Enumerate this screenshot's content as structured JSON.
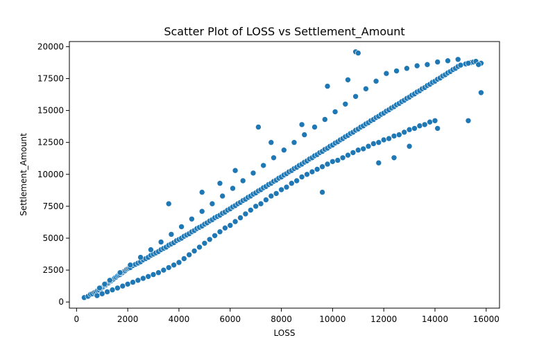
{
  "chart_data": {
    "type": "scatter",
    "title": "Scatter Plot of LOSS vs Settlement_Amount",
    "xlabel": "LOSS",
    "ylabel": "Settlement_Amount",
    "xlim": [
      -280,
      16520
    ],
    "ylim": [
      -480,
      20400
    ],
    "xticks": [
      0,
      2000,
      4000,
      6000,
      8000,
      10000,
      12000,
      14000,
      16000
    ],
    "yticks": [
      0,
      2500,
      5000,
      7500,
      10000,
      12500,
      15000,
      17500,
      20000
    ],
    "grid": false,
    "legend": "none",
    "marker_color": "#1f77b4",
    "marker_edge": "#ffffff",
    "series": [
      {
        "x": [
          300,
          450,
          550,
          620,
          700,
          760,
          820,
          880,
          950,
          1000,
          1050,
          1100,
          1150,
          1200,
          1250,
          1300,
          1350,
          1400,
          1450,
          1500,
          1550,
          1600,
          1650,
          1700,
          1750,
          1800,
          1850,
          1900,
          1950,
          2000,
          2050,
          2100,
          2200,
          2300,
          2400,
          2500,
          2600,
          2700,
          2800,
          2900,
          3000,
          3100,
          3200,
          3300,
          3400,
          3500,
          3600,
          3700,
          3800,
          3900,
          4000,
          4100,
          4200,
          4300,
          4400,
          4500,
          4600,
          4700,
          4800,
          4900,
          5000,
          5100,
          5200,
          5300,
          5400,
          5500,
          5600,
          5700,
          5800,
          5900,
          6000,
          6100,
          6200,
          6300,
          6400,
          6500,
          6600,
          6700,
          6800,
          6900,
          7000,
          7100,
          7200,
          7300,
          7400,
          7500,
          7600,
          7700,
          7800,
          7900,
          8000,
          8100,
          8200,
          8300,
          8400,
          8500,
          8600,
          8700,
          8800,
          8900,
          9000,
          9100,
          9200,
          9300,
          9400,
          9500,
          9600,
          9700,
          9800,
          9900,
          10000,
          10100,
          10200,
          10300,
          10400,
          10500,
          10600,
          10700,
          10800,
          10900,
          11000,
          11100,
          11200,
          11300,
          11400,
          11500,
          11600,
          11700,
          11800,
          11900,
          12000,
          12100,
          12200,
          12300,
          12400,
          12500,
          12600,
          12700,
          12800,
          12900,
          13000,
          13100,
          13200,
          13300,
          13400,
          13500,
          13600,
          13700,
          13800,
          13900,
          14000,
          14100,
          14200,
          14300,
          14400,
          14500,
          14600,
          14700,
          14800,
          14900,
          15000,
          15200,
          15400,
          15500,
          15600,
          15800,
          800,
          1000,
          1200,
          1400,
          1600,
          1800,
          2000,
          2200,
          2400,
          2600,
          2800,
          3000,
          3200,
          3400,
          3600,
          3800,
          4000,
          4200,
          4400,
          4600,
          4800,
          5000,
          5200,
          5400,
          5600,
          5800,
          6000,
          6200,
          6400,
          6600,
          6800,
          7000,
          7200,
          7400,
          7600,
          7800,
          8000,
          8200,
          8400,
          8600,
          8800,
          9000,
          9200,
          9400,
          9600,
          9800,
          10000,
          10200,
          10400,
          10600,
          10800,
          11000,
          11200,
          11400,
          11600,
          11800,
          12000,
          12200,
          12400,
          12600,
          12800,
          13000,
          13200,
          13400,
          13600,
          13800,
          14000,
          900,
          1100,
          1300,
          1700,
          2100,
          2500,
          2900,
          3300,
          3700,
          4100,
          4500,
          4900,
          5300,
          5700,
          6100,
          6500,
          6900,
          7300,
          7700,
          8100,
          8500,
          8900,
          9300,
          9700,
          10100,
          10500,
          10900,
          11300,
          11700,
          12100,
          12500,
          12900,
          13300,
          13700,
          14100,
          14500,
          14900,
          15300,
          15700,
          10900,
          11000,
          10600,
          9600,
          11800,
          12400,
          13000,
          14100,
          15300,
          15800,
          7100,
          8800,
          9800,
          4900,
          5600,
          3600,
          6200,
          7600
        ],
        "y": [
          350,
          450,
          600,
          650,
          750,
          800,
          900,
          950,
          1050,
          1150,
          1200,
          1300,
          1350,
          1450,
          1500,
          1600,
          1650,
          1750,
          1800,
          1900,
          1950,
          2050,
          2100,
          2150,
          2250,
          2300,
          2400,
          2450,
          2550,
          2600,
          2650,
          2700,
          2850,
          2950,
          3050,
          3150,
          3300,
          3400,
          3500,
          3650,
          3750,
          3850,
          3950,
          4100,
          4200,
          4300,
          4450,
          4550,
          4650,
          4800,
          4900,
          5000,
          5150,
          5250,
          5350,
          5500,
          5600,
          5750,
          5850,
          5950,
          6100,
          6200,
          6350,
          6450,
          6600,
          6700,
          6800,
          6950,
          7050,
          7200,
          7300,
          7450,
          7550,
          7700,
          7800,
          7950,
          8050,
          8200,
          8300,
          8450,
          8550,
          8700,
          8800,
          8950,
          9050,
          9200,
          9300,
          9450,
          9550,
          9700,
          9800,
          9950,
          10050,
          10200,
          10300,
          10450,
          10550,
          10700,
          10800,
          10950,
          11050,
          11200,
          11300,
          11450,
          11550,
          11700,
          11800,
          11950,
          12050,
          12200,
          12300,
          12450,
          12550,
          12700,
          12800,
          12950,
          13050,
          13200,
          13300,
          13450,
          13550,
          13700,
          13800,
          13950,
          14050,
          14200,
          14300,
          14450,
          14550,
          14700,
          14800,
          14950,
          15050,
          15200,
          15300,
          15450,
          15550,
          15700,
          15800,
          15950,
          16050,
          16200,
          16300,
          16450,
          16550,
          16700,
          16800,
          16950,
          17050,
          17200,
          17300,
          17450,
          17550,
          17700,
          17800,
          17950,
          18050,
          18200,
          18300,
          18450,
          18550,
          18650,
          18750,
          18800,
          18850,
          18700,
          500,
          650,
          800,
          950,
          1100,
          1250,
          1400,
          1550,
          1700,
          1850,
          2000,
          2150,
          2300,
          2500,
          2700,
          2900,
          3100,
          3400,
          3700,
          4000,
          4300,
          4600,
          4900,
          5200,
          5500,
          5800,
          6000,
          6300,
          6600,
          6900,
          7200,
          7500,
          7700,
          8000,
          8300,
          8500,
          8800,
          9000,
          9300,
          9500,
          9800,
          10000,
          10200,
          10400,
          10600,
          10800,
          11000,
          11100,
          11300,
          11500,
          11700,
          11900,
          12000,
          12200,
          12400,
          12500,
          12700,
          12800,
          13000,
          13100,
          13300,
          13500,
          13600,
          13800,
          13900,
          14100,
          14200,
          1100,
          1400,
          1700,
          2300,
          2900,
          3500,
          4100,
          4700,
          5300,
          5900,
          6500,
          7100,
          7700,
          8300,
          8900,
          9500,
          10100,
          10700,
          11300,
          11900,
          12500,
          13100,
          13700,
          14300,
          14900,
          15500,
          16100,
          16700,
          17300,
          17900,
          18100,
          18300,
          18500,
          18600,
          18800,
          18900,
          19000,
          18700,
          18600,
          19600,
          19500,
          17400,
          8600,
          10900,
          11300,
          12200,
          13600,
          14200,
          16400,
          13700,
          13900,
          16900,
          8600,
          9300,
          7700,
          10300,
          12500
        ]
      }
    ]
  }
}
